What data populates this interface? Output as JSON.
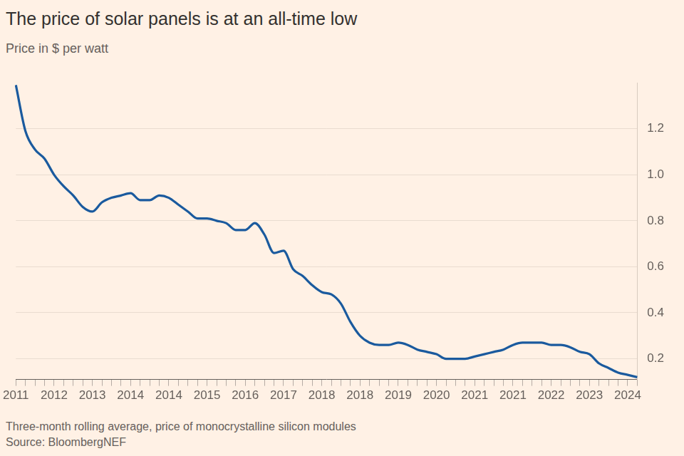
{
  "chart_data": {
    "type": "line",
    "title": "The price of solar panels is at an all-time low",
    "subtitle": "Price in $ per watt",
    "footnote": "Three-month rolling average, price of monocrystalline silicon modules",
    "source": "Source: BloombergNEF",
    "categories": [
      "2011",
      null,
      null,
      null,
      "2012",
      null,
      null,
      null,
      "2013",
      null,
      null,
      null,
      "2014",
      null,
      null,
      null,
      "2014",
      null,
      null,
      null,
      "2015",
      null,
      null,
      null,
      "2016",
      null,
      null,
      null,
      "2017",
      null,
      null,
      null,
      "2018",
      null,
      null,
      null,
      "2018",
      null,
      null,
      null,
      "2019",
      null,
      null,
      null,
      "2020",
      null,
      null,
      null,
      "2021",
      null,
      null,
      null,
      "2021",
      null,
      null,
      null,
      "2022",
      null,
      null,
      null,
      "2023",
      null,
      null,
      null,
      "2024",
      null
    ],
    "values": [
      1.39,
      1.19,
      1.11,
      1.07,
      1.0,
      0.95,
      0.91,
      0.86,
      0.84,
      0.88,
      0.9,
      0.91,
      0.92,
      0.89,
      0.89,
      0.91,
      0.9,
      0.87,
      0.84,
      0.81,
      0.81,
      0.8,
      0.79,
      0.76,
      0.76,
      0.79,
      0.74,
      0.66,
      0.67,
      0.59,
      0.56,
      0.52,
      0.49,
      0.48,
      0.44,
      0.36,
      0.3,
      0.27,
      0.26,
      0.26,
      0.27,
      0.26,
      0.24,
      0.23,
      0.22,
      0.2,
      0.2,
      0.2,
      0.21,
      0.22,
      0.23,
      0.24,
      0.26,
      0.27,
      0.27,
      0.27,
      0.26,
      0.26,
      0.25,
      0.23,
      0.22,
      0.18,
      0.16,
      0.14,
      0.13,
      0.12
    ],
    "color": "#1a5a9e",
    "ylim": [
      0.11,
      1.4
    ],
    "yticks": [
      0.2,
      0.4,
      0.6,
      0.8,
      {
        "value": 1,
        "label": "1.0"
      },
      1.2
    ],
    "grid": true
  }
}
